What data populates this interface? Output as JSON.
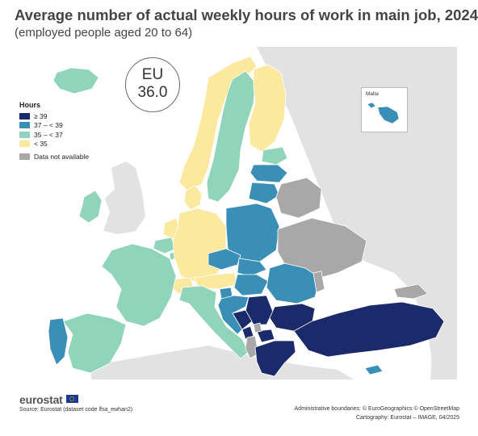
{
  "title": "Average number of actual weekly hours of work in main job, 2024",
  "subtitle": "(employed people aged 20 to 64)",
  "eu_badge": {
    "label": "EU",
    "value": "36.0"
  },
  "legend": {
    "title": "Hours",
    "classes": [
      {
        "label": "≥ 39",
        "color": "#1b2a6b"
      },
      {
        "label": "37 – < 39",
        "color": "#3a8fb7"
      },
      {
        "label": "35 – < 37",
        "color": "#8fd4bb"
      },
      {
        "label": "< 35",
        "color": "#fbe9a0"
      }
    ],
    "not_available": {
      "label": "Data not available",
      "color": "#a8a8a8"
    }
  },
  "inset": {
    "label": "Malta"
  },
  "colors": {
    "sea": "#ffffff",
    "non_eu_land": "#e2e2e2",
    "border": "#ffffff"
  },
  "regions": [
    {
      "name": "Iceland",
      "class": 2
    },
    {
      "name": "Norway",
      "class": 3
    },
    {
      "name": "Sweden",
      "class": 2
    },
    {
      "name": "Finland",
      "class": 3
    },
    {
      "name": "Estonia",
      "class": 2
    },
    {
      "name": "Latvia",
      "class": 1
    },
    {
      "name": "Lithuania",
      "class": 1
    },
    {
      "name": "Ireland",
      "class": 2
    },
    {
      "name": "Denmark",
      "class": 3
    },
    {
      "name": "Netherlands",
      "class": 3
    },
    {
      "name": "Belgium",
      "class": 2
    },
    {
      "name": "Luxembourg",
      "class": 2
    },
    {
      "name": "Germany",
      "class": 3
    },
    {
      "name": "Poland",
      "class": 1
    },
    {
      "name": "Czechia",
      "class": 1
    },
    {
      "name": "Slovakia",
      "class": 1
    },
    {
      "name": "Austria",
      "class": 3
    },
    {
      "name": "Switzerland",
      "class": 3
    },
    {
      "name": "Hungary",
      "class": 1
    },
    {
      "name": "Slovenia",
      "class": 1
    },
    {
      "name": "Croatia",
      "class": 1
    },
    {
      "name": "Romania",
      "class": 1
    },
    {
      "name": "France",
      "class": 2
    },
    {
      "name": "Spain",
      "class": 2
    },
    {
      "name": "Portugal",
      "class": 1
    },
    {
      "name": "Italy",
      "class": 2
    },
    {
      "name": "Serbia",
      "class": 0
    },
    {
      "name": "Bosnia and Herzegovina",
      "class": 0
    },
    {
      "name": "Montenegro",
      "class": 0
    },
    {
      "name": "North Macedonia",
      "class": 0
    },
    {
      "name": "Albania",
      "class": 4
    },
    {
      "name": "Kosovo",
      "class": 4
    },
    {
      "name": "Bulgaria",
      "class": 0
    },
    {
      "name": "Greece",
      "class": 0
    },
    {
      "name": "Türkiye",
      "class": 0
    },
    {
      "name": "Cyprus",
      "class": 1
    },
    {
      "name": "Malta",
      "class": 1
    },
    {
      "name": "Ukraine",
      "class": 4
    },
    {
      "name": "Belarus",
      "class": 4
    },
    {
      "name": "Moldova",
      "class": 4
    },
    {
      "name": "Georgia",
      "class": 4
    }
  ],
  "footer": {
    "logo": "eurostat",
    "source": "Source: Eurostat (dataset code lfsa_ewhan2)",
    "admin": "Administrative boundaries: © EuroGeographics © OpenStreetMap",
    "cartography": "Cartography: Eurostat – IMAGE, 04/2025"
  }
}
